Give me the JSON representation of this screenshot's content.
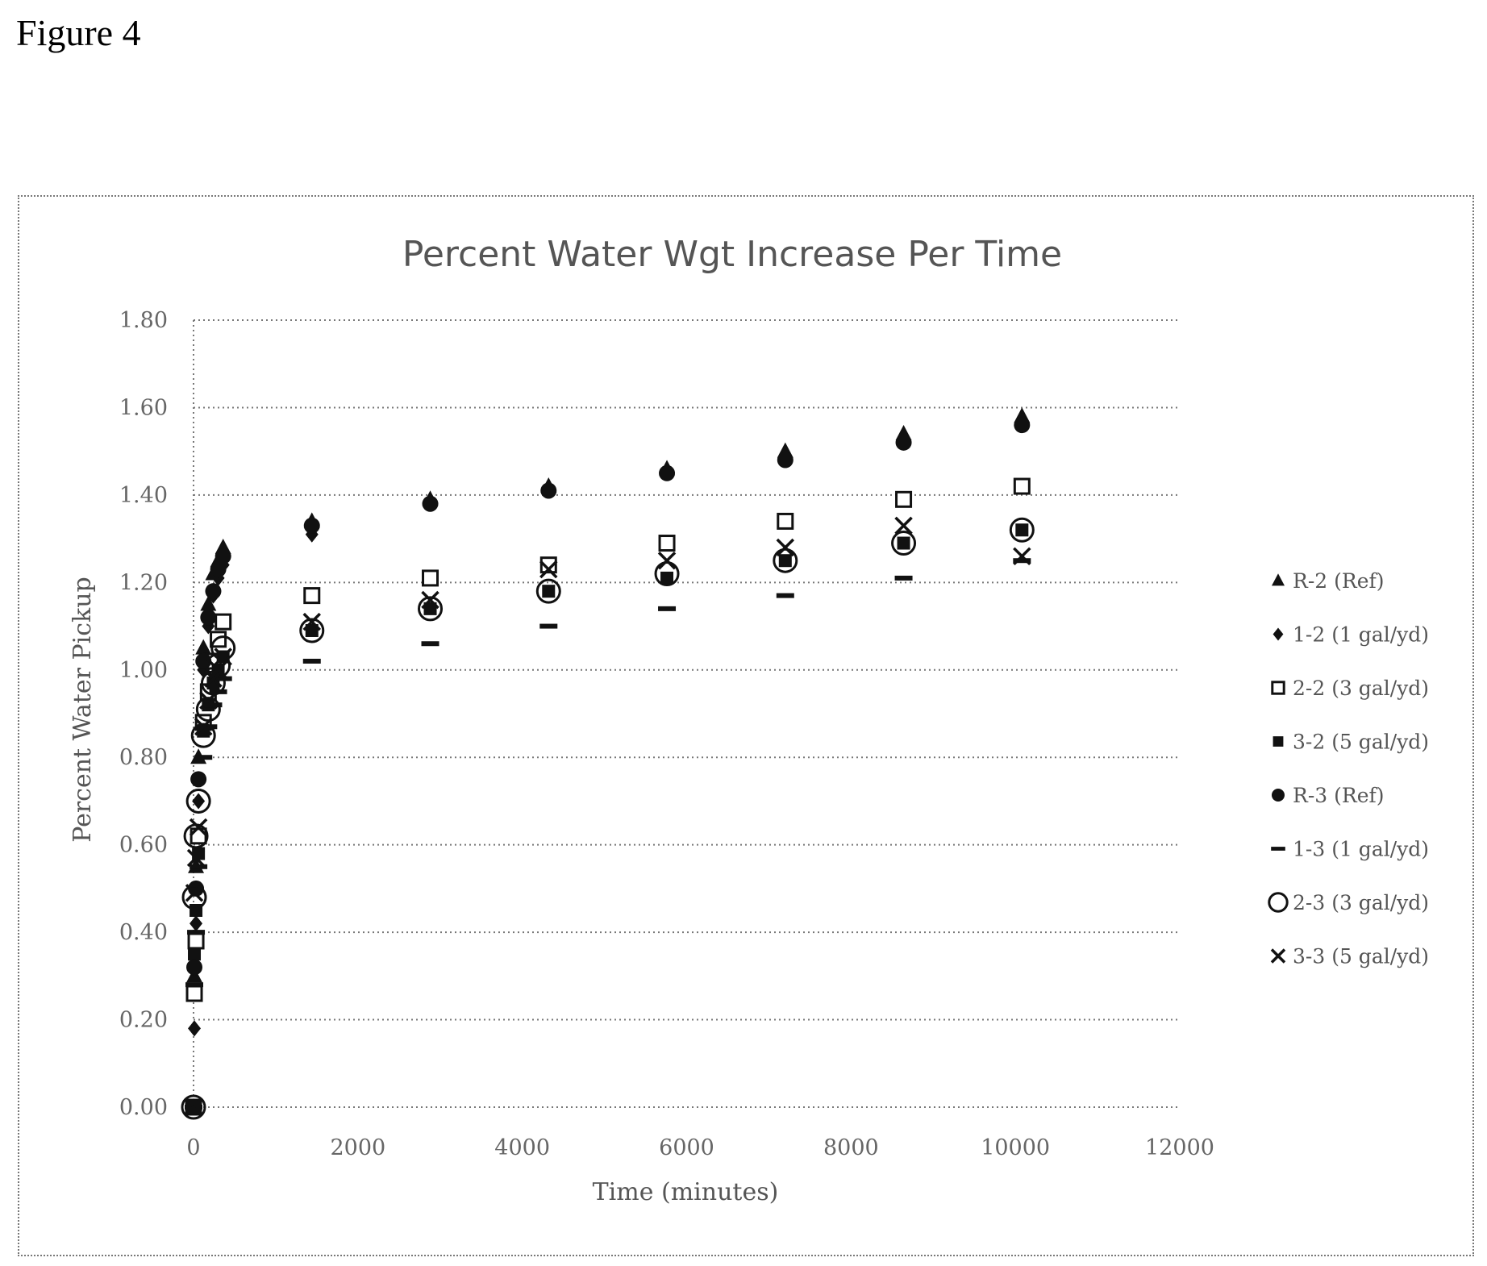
{
  "figure_label": "Figure 4",
  "chart_data": {
    "type": "scatter",
    "title": "Percent Water Wgt Increase Per Time",
    "xlabel": "Time (minutes)",
    "ylabel": "Percent Water Pickup",
    "xlim": [
      0,
      12000
    ],
    "ylim": [
      0,
      1.8
    ],
    "x_ticks": [
      "0",
      "2000",
      "4000",
      "6000",
      "8000",
      "10000",
      "12000"
    ],
    "y_ticks": [
      "0.00",
      "0.20",
      "0.40",
      "0.60",
      "0.80",
      "1.00",
      "1.20",
      "1.40",
      "1.60",
      "1.80"
    ],
    "grid": "horizontal",
    "legend_position": "right",
    "series": [
      {
        "name": "R-2 (Ref)",
        "marker": "triangle",
        "color": "#111111",
        "x": [
          0,
          10,
          30,
          60,
          120,
          180,
          240,
          300,
          360,
          1440,
          2880,
          4320,
          5760,
          7200,
          8640,
          10080
        ],
        "y": [
          0,
          0.3,
          0.55,
          0.8,
          1.05,
          1.15,
          1.22,
          1.25,
          1.28,
          1.34,
          1.39,
          1.42,
          1.46,
          1.5,
          1.54,
          1.58
        ]
      },
      {
        "name": "1-2 (1 gal/yd)",
        "marker": "diamond",
        "color": "#111111",
        "x": [
          0,
          10,
          30,
          60,
          120,
          180,
          240,
          300,
          360,
          1440,
          2880,
          4320,
          5760,
          7200,
          8640,
          10080
        ],
        "y": [
          0,
          0.18,
          0.42,
          0.7,
          1.0,
          1.1,
          1.17,
          1.21,
          1.24,
          1.31,
          1.38,
          1.41,
          1.45,
          1.48,
          1.52,
          1.57
        ]
      },
      {
        "name": "2-2 (3 gal/yd)",
        "marker": "square-open",
        "color": "#111111",
        "x": [
          0,
          10,
          30,
          60,
          120,
          180,
          240,
          300,
          360,
          1440,
          2880,
          4320,
          5760,
          7200,
          8640,
          10080
        ],
        "y": [
          0,
          0.26,
          0.38,
          0.62,
          0.88,
          0.95,
          1.02,
          1.07,
          1.11,
          1.17,
          1.21,
          1.24,
          1.29,
          1.34,
          1.39,
          1.42
        ]
      },
      {
        "name": "3-2 (5 gal/yd)",
        "marker": "square-filled",
        "color": "#111111",
        "x": [
          0,
          10,
          30,
          60,
          120,
          180,
          240,
          300,
          360,
          1440,
          2880,
          4320,
          5760,
          7200,
          8640,
          10080
        ],
        "y": [
          0,
          0.35,
          0.45,
          0.58,
          0.86,
          0.92,
          0.97,
          1.0,
          1.03,
          1.09,
          1.14,
          1.18,
          1.21,
          1.25,
          1.29,
          1.32
        ]
      },
      {
        "name": "R-3 (Ref)",
        "marker": "circle-filled",
        "color": "#111111",
        "x": [
          0,
          10,
          30,
          60,
          120,
          180,
          240,
          300,
          360,
          1440,
          2880,
          4320,
          5760,
          7200,
          8640,
          10080
        ],
        "y": [
          0,
          0.32,
          0.5,
          0.75,
          1.02,
          1.12,
          1.18,
          1.23,
          1.26,
          1.33,
          1.38,
          1.41,
          1.45,
          1.48,
          1.52,
          1.56
        ]
      },
      {
        "name": "1-3 (1 gal/yd)",
        "marker": "dash",
        "color": "#111111",
        "x": [
          0,
          10,
          30,
          60,
          120,
          180,
          240,
          300,
          360,
          1440,
          2880,
          4320,
          5760,
          7200,
          8640,
          10080
        ],
        "y": [
          0,
          0.28,
          0.4,
          0.55,
          0.8,
          0.87,
          0.92,
          0.95,
          0.98,
          1.02,
          1.06,
          1.1,
          1.14,
          1.17,
          1.21,
          1.25
        ]
      },
      {
        "name": "2-3 (3 gal/yd)",
        "marker": "circle-open",
        "color": "#111111",
        "x": [
          0,
          10,
          30,
          60,
          120,
          180,
          240,
          300,
          360,
          1440,
          2880,
          4320,
          5760,
          7200,
          8640,
          10080
        ],
        "y": [
          0,
          0.48,
          0.62,
          0.7,
          0.85,
          0.91,
          0.97,
          1.01,
          1.05,
          1.09,
          1.14,
          1.18,
          1.22,
          1.25,
          1.29,
          1.32
        ]
      },
      {
        "name": "3-3 (5 gal/yd)",
        "marker": "x",
        "color": "#111111",
        "x": [
          0,
          10,
          30,
          60,
          120,
          180,
          240,
          300,
          360,
          1440,
          2880,
          4320,
          5760,
          7200,
          8640,
          10080
        ],
        "y": [
          0,
          0.49,
          0.57,
          0.64,
          0.87,
          0.93,
          0.98,
          1.0,
          1.03,
          1.11,
          1.16,
          1.23,
          1.25,
          1.28,
          1.33,
          1.26
        ]
      }
    ]
  }
}
